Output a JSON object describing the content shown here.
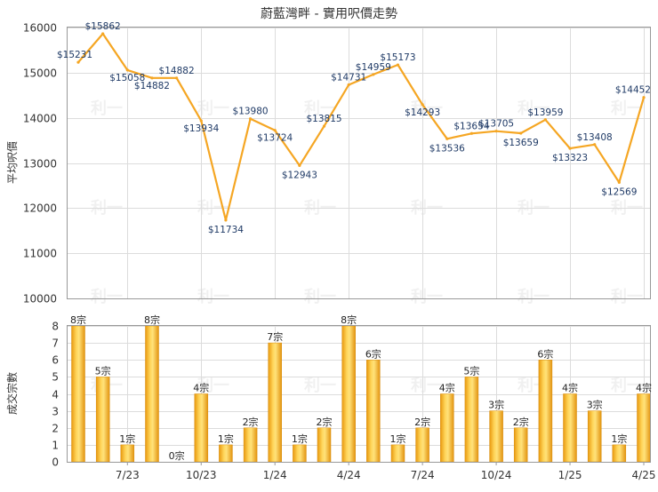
{
  "chart_data": [
    {
      "type": "line",
      "title": "蔚藍灣畔 - 實用呎價走勢",
      "ylabel": "平均呎價",
      "ylim": [
        10000,
        16000
      ],
      "yticks": [
        "10000",
        "11000",
        "12000",
        "13000",
        "14000",
        "15000",
        "16000"
      ],
      "grid": true,
      "watermark": "利一",
      "series": [
        {
          "values": [
            15231,
            15862,
            15058,
            14882,
            14882,
            13934,
            11734,
            13980,
            13724,
            12943,
            13815,
            14731,
            14959,
            15173,
            14293,
            13536,
            13654,
            13705,
            13659,
            13959,
            13323,
            13408,
            12569,
            14452
          ],
          "labels": [
            "$15231",
            "$15862",
            "$15058",
            "$14882",
            "$14882",
            "$13934",
            "$11734",
            "$13980",
            "$13724",
            "$12943",
            "$13815",
            "$14731",
            "$14959",
            "$15173",
            "$14293",
            "$13536",
            "$13654",
            "$13705",
            "$13659",
            "$13959",
            "$13323",
            "$13408",
            "$12569",
            "$14452"
          ],
          "color": "#f5a623"
        }
      ]
    },
    {
      "type": "bar",
      "ylabel": "成交宗數",
      "ylim": [
        0,
        8
      ],
      "yticks": [
        "0",
        "1",
        "2",
        "3",
        "4",
        "5",
        "6",
        "7",
        "8"
      ],
      "x_tick_labels": [
        "7/23",
        "10/23",
        "1/24",
        "4/24",
        "7/24",
        "10/24",
        "1/25",
        "4/25"
      ],
      "grid": true,
      "series": [
        {
          "values": [
            8,
            5,
            1,
            8,
            0,
            4,
            1,
            2,
            7,
            1,
            2,
            8,
            6,
            1,
            2,
            4,
            5,
            3,
            2,
            6,
            4,
            3,
            1,
            4
          ],
          "labels": [
            "8宗",
            "5宗",
            "1宗",
            "8宗",
            "0宗",
            "4宗",
            "1宗",
            "2宗",
            "7宗",
            "1宗",
            "2宗",
            "8宗",
            "6宗",
            "1宗",
            "2宗",
            "4宗",
            "5宗",
            "3宗",
            "2宗",
            "6宗",
            "4宗",
            "3宗",
            "1宗",
            "4宗"
          ],
          "color": "#f2b01e"
        }
      ]
    }
  ]
}
